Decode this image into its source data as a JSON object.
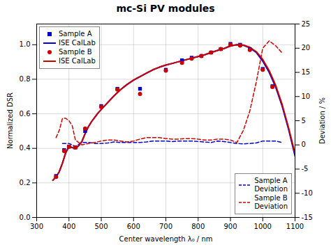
{
  "chart_data": {
    "type": "line",
    "title": "mc-Si PV modules",
    "xlabel": "Center wavelength λ₀ / nm",
    "ylabel": "Normalized DSR",
    "y2label": "Deviation / %",
    "xlim": [
      300,
      1100
    ],
    "xticks": [
      300,
      400,
      500,
      600,
      700,
      800,
      900,
      1000,
      1100
    ],
    "ylim": [
      0.0,
      1.12
    ],
    "yticks": [
      {
        "value": 0,
        "label": "0.0"
      },
      0.2,
      0.4,
      0.6,
      0.8,
      {
        "value": 1,
        "label": "1.0"
      }
    ],
    "y2lim": [
      -15,
      25
    ],
    "y2ticks": [
      -15,
      -10,
      -5,
      0,
      5,
      10,
      15,
      20,
      25
    ],
    "grid": true,
    "legend": "upper left",
    "series": [
      {
        "name": "Sample A",
        "type": "scatter",
        "marker": "square",
        "color": "#0000cc",
        "x": [
          360,
          385,
          400,
          420,
          450,
          500,
          550,
          620,
          700,
          750,
          780,
          810,
          840,
          870,
          900,
          930,
          960,
          1000,
          1030
        ],
        "values": [
          0.24,
          0.39,
          0.41,
          0.405,
          0.5,
          0.645,
          0.745,
          0.745,
          0.855,
          0.91,
          0.925,
          0.935,
          0.955,
          0.975,
          1.005,
          1.0,
          0.975,
          0.86,
          0.76
        ]
      },
      {
        "name": "ISE CalLab",
        "type": "line",
        "line_style": "solid",
        "color": "#0000cc",
        "x": [
          350,
          360,
          370,
          380,
          390,
          400,
          410,
          420,
          430,
          440,
          450,
          460,
          470,
          480,
          490,
          500,
          520,
          540,
          560,
          580,
          600,
          620,
          640,
          660,
          680,
          700,
          720,
          740,
          760,
          780,
          800,
          820,
          840,
          860,
          880,
          900,
          920,
          940,
          960,
          980,
          1000,
          1020,
          1040,
          1060,
          1080,
          1100
        ],
        "values": [
          0.215,
          0.235,
          0.265,
          0.315,
          0.375,
          0.41,
          0.405,
          0.4,
          0.415,
          0.44,
          0.485,
          0.525,
          0.555,
          0.58,
          0.605,
          0.625,
          0.665,
          0.705,
          0.74,
          0.77,
          0.795,
          0.815,
          0.835,
          0.855,
          0.87,
          0.882,
          0.892,
          0.902,
          0.912,
          0.922,
          0.932,
          0.942,
          0.955,
          0.967,
          0.978,
          0.993,
          1.0,
          0.997,
          0.982,
          0.955,
          0.905,
          0.84,
          0.755,
          0.645,
          0.51,
          0.355
        ]
      },
      {
        "name": "Sample B",
        "type": "scatter",
        "marker": "circle",
        "color": "#cc0000",
        "x": [
          360,
          385,
          400,
          420,
          450,
          500,
          550,
          620,
          700,
          750,
          780,
          810,
          840,
          870,
          900,
          930,
          960,
          1000,
          1030
        ],
        "values": [
          0.235,
          0.385,
          0.41,
          0.405,
          0.515,
          0.64,
          0.74,
          0.715,
          0.85,
          0.895,
          0.92,
          0.935,
          0.955,
          0.975,
          1.0,
          0.995,
          0.97,
          0.855,
          0.755
        ]
      },
      {
        "name": "ISE CalLab",
        "type": "line",
        "line_style": "solid",
        "color": "#cc0000",
        "x": [
          350,
          360,
          370,
          380,
          390,
          400,
          410,
          420,
          430,
          440,
          450,
          460,
          470,
          480,
          490,
          500,
          520,
          540,
          560,
          580,
          600,
          620,
          640,
          660,
          680,
          700,
          720,
          740,
          760,
          780,
          800,
          820,
          840,
          860,
          880,
          900,
          920,
          940,
          960,
          980,
          1000,
          1020,
          1040,
          1060,
          1080,
          1100
        ],
        "values": [
          0.215,
          0.235,
          0.265,
          0.315,
          0.375,
          0.41,
          0.405,
          0.4,
          0.415,
          0.44,
          0.485,
          0.525,
          0.555,
          0.58,
          0.605,
          0.625,
          0.665,
          0.705,
          0.74,
          0.77,
          0.795,
          0.815,
          0.835,
          0.855,
          0.87,
          0.882,
          0.892,
          0.902,
          0.912,
          0.922,
          0.932,
          0.942,
          0.955,
          0.967,
          0.978,
          0.993,
          1.0,
          0.998,
          0.985,
          0.96,
          0.915,
          0.85,
          0.765,
          0.655,
          0.52,
          0.37
        ]
      },
      {
        "name": "Sample A\nDeviation",
        "type": "line",
        "line_style": "dashed",
        "color": "#0000cc",
        "axis": "y2",
        "x": [
          380,
          400,
          420,
          440,
          460,
          480,
          500,
          520,
          540,
          560,
          580,
          600,
          620,
          640,
          660,
          680,
          700,
          720,
          740,
          760,
          780,
          800,
          820,
          840,
          860,
          880,
          900,
          920,
          940,
          960,
          980,
          1000,
          1020,
          1040,
          1060
        ],
        "values": [
          0.3,
          0.3,
          -0.3,
          0.5,
          0.5,
          0.3,
          0.3,
          0.4,
          0.6,
          0.5,
          0.5,
          0.5,
          0.5,
          0.6,
          0.8,
          0.8,
          0.8,
          0.7,
          0.8,
          0.8,
          0.8,
          0.7,
          0.6,
          0.5,
          0.8,
          0.7,
          0.5,
          0.3,
          0.2,
          0.3,
          0.4,
          0.8,
          0.8,
          0.8,
          0.5
        ]
      },
      {
        "name": "Sample B\nDeviation",
        "type": "line",
        "line_style": "dashed",
        "color": "#cc0000",
        "axis": "y2",
        "x": [
          360,
          370,
          380,
          390,
          400,
          410,
          420,
          430,
          440,
          460,
          480,
          500,
          520,
          540,
          560,
          580,
          600,
          620,
          640,
          660,
          680,
          700,
          720,
          740,
          760,
          780,
          800,
          820,
          840,
          860,
          880,
          900,
          920,
          940,
          960,
          980,
          1000,
          1020,
          1040,
          1060
        ],
        "values": [
          1.5,
          3.0,
          5.5,
          5.5,
          5.0,
          4.0,
          1.0,
          0.5,
          0.0,
          0.3,
          0.5,
          0.8,
          1.0,
          1.0,
          0.8,
          0.6,
          0.8,
          1.2,
          1.5,
          1.5,
          1.5,
          1.3,
          1.2,
          1.2,
          1.3,
          1.3,
          1.2,
          1.0,
          1.0,
          1.2,
          1.2,
          1.0,
          0.5,
          3.0,
          7.0,
          13.0,
          20.0,
          21.5,
          20.5,
          19.0
        ]
      }
    ]
  }
}
